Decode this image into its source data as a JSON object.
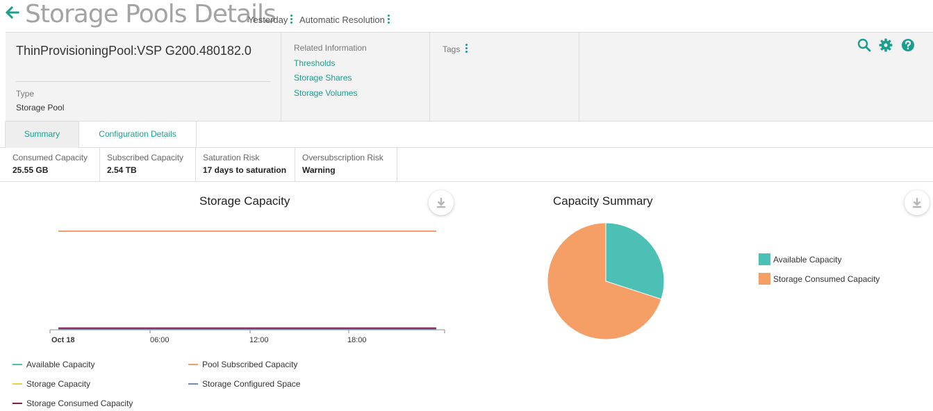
{
  "header": {
    "title": "Storage Pools Details",
    "time_range": "Yesterday",
    "resolution": "Automatic Resolution",
    "icons": {
      "back": "arrow-left-icon",
      "kebab": "vertical-dots-icon"
    }
  },
  "info": {
    "pool_name": "ThinProvisioningPool:VSP G200.480182.0",
    "type_label": "Type",
    "type_value": "Storage Pool",
    "related_title": "Related Information",
    "related_links": [
      "Thresholds",
      "Storage Shares",
      "Storage Volumes"
    ],
    "tags_label": "Tags",
    "toolbar_icons": [
      "search-icon",
      "gear-icon",
      "help-icon"
    ]
  },
  "tabs": [
    {
      "label": "Summary",
      "active": true
    },
    {
      "label": "Configuration Details",
      "active": false
    }
  ],
  "metrics": [
    {
      "label": "Consumed Capacity",
      "value": "25.55 GB"
    },
    {
      "label": "Subscribed Capacity",
      "value": "2.54 TB"
    },
    {
      "label": "Saturation Risk",
      "value": "17 days to saturation"
    },
    {
      "label": "Oversubscription Risk",
      "value": "Warning"
    }
  ],
  "colors": {
    "accent": "#1a9e8e",
    "available": "#4dc0b5",
    "subscribed": "#f59e66",
    "storage": "#e5d43a",
    "configured": "#6f8fb0",
    "consumed": "#8b1c4a"
  },
  "chart_data": [
    {
      "type": "line",
      "title": "Storage Capacity",
      "x": [
        "Oct 18",
        "06:00",
        "12:00",
        "18:00"
      ],
      "ticks": [
        "Oct 18",
        "06:00",
        "12:00",
        "18:00"
      ],
      "grid": false,
      "legend_position": "bottom",
      "series": [
        {
          "name": "Available Capacity",
          "color": "#4dc0b5",
          "values": [
            0,
            0,
            0,
            0
          ]
        },
        {
          "name": "Pool Subscribed Capacity",
          "color": "#f59e66",
          "values": [
            2.54,
            2.54,
            2.54,
            2.54
          ]
        },
        {
          "name": "Storage Capacity",
          "color": "#e5d43a",
          "values": [
            0,
            0,
            0,
            0
          ]
        },
        {
          "name": "Storage Configured Space",
          "color": "#6f8fb0",
          "values": [
            0,
            0,
            0,
            0
          ]
        },
        {
          "name": "Storage Consumed Capacity",
          "color": "#8b1c4a",
          "values": [
            0.025,
            0.025,
            0.025,
            0.025
          ]
        }
      ]
    },
    {
      "type": "pie",
      "title": "Capacity Summary",
      "legend_position": "right",
      "slices": [
        {
          "name": "Available Capacity",
          "value": 30,
          "color": "#4dc0b5"
        },
        {
          "name": "Storage Consumed Capacity",
          "value": 70,
          "color": "#f59e66"
        }
      ]
    }
  ]
}
